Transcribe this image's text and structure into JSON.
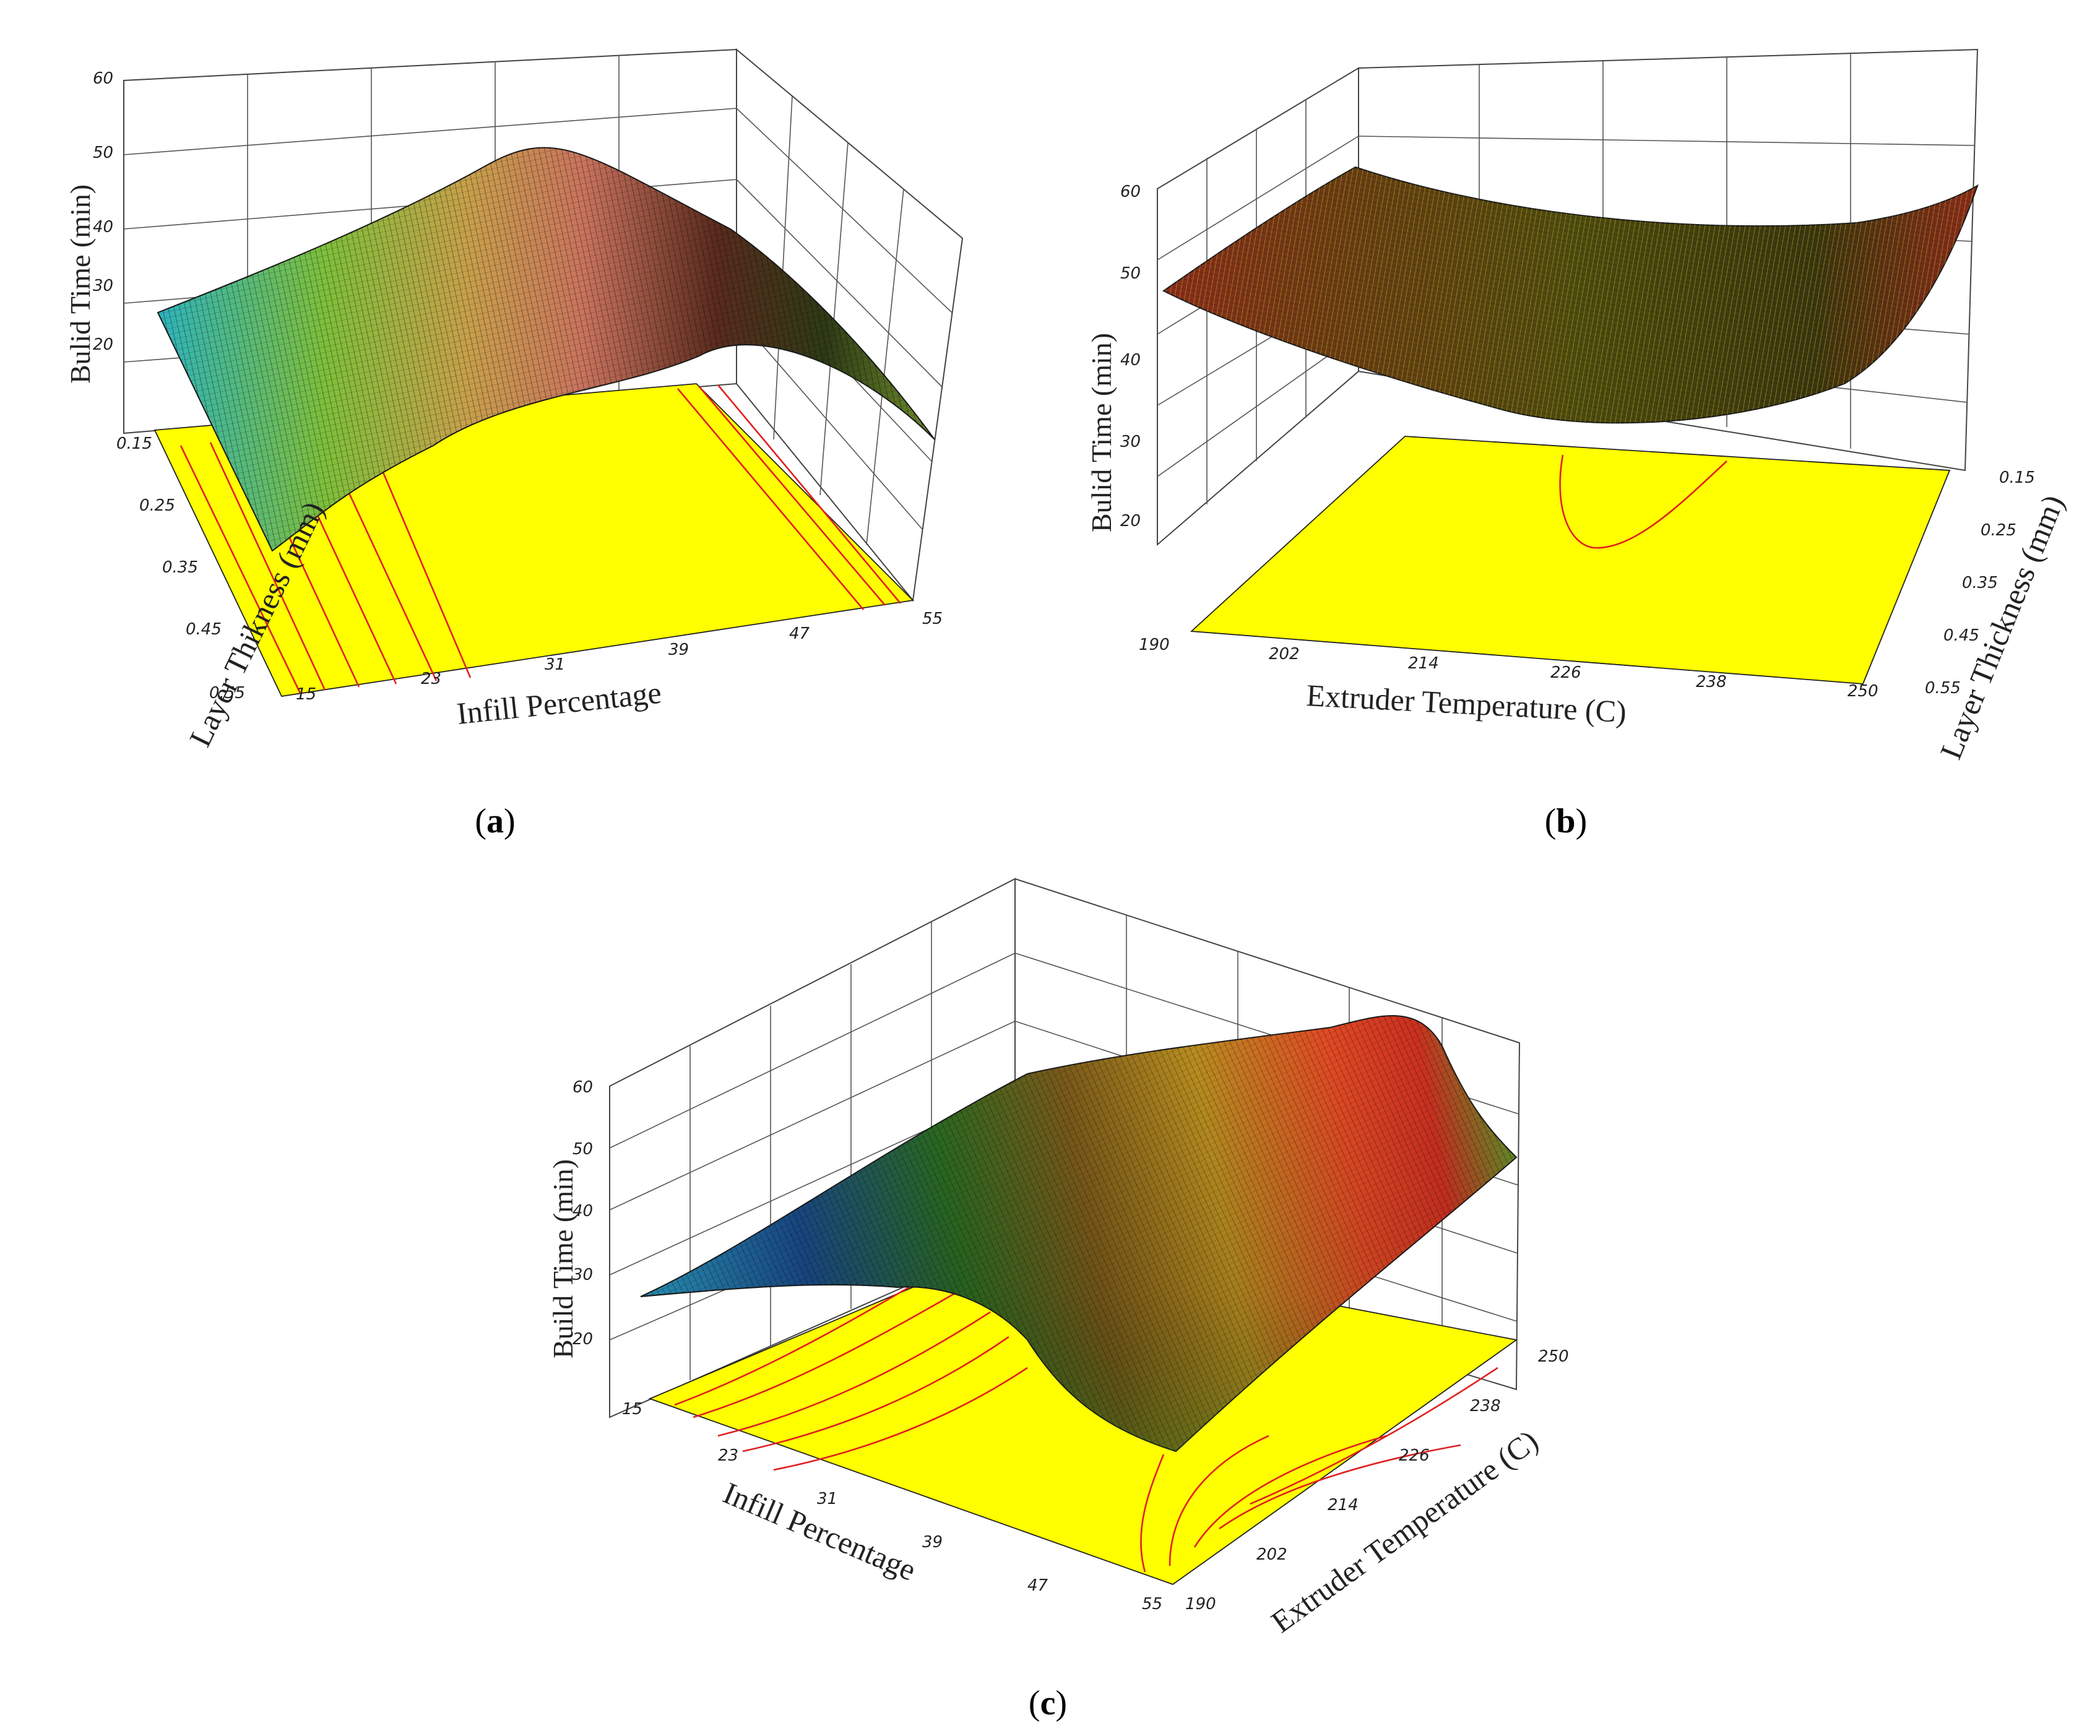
{
  "chart_data": [
    {
      "id": "a",
      "type": "surface",
      "caption_label": "a",
      "zlabel": "Bulid Time (min)",
      "xlabel": "Infill Percentage",
      "ylabel": "Layer Thikness (mm)",
      "x_ticks": [
        "15",
        "23",
        "31",
        "39",
        "47",
        "55"
      ],
      "y_ticks": [
        "0.15",
        "0.25",
        "0.35",
        "0.45",
        "0.55"
      ],
      "z_ticks": [
        "20",
        "30",
        "40",
        "50",
        "60"
      ],
      "xlim": [
        15,
        55
      ],
      "ylim": [
        0.15,
        0.55
      ],
      "zlim": [
        12,
        60
      ],
      "surface_x": [
        15,
        23,
        31,
        39,
        47,
        55
      ],
      "surface_y": [
        0.15,
        0.35,
        0.55
      ],
      "surface_z": [
        [
          25,
          30,
          24
        ],
        [
          29,
          35,
          29
        ],
        [
          35,
          41,
          34
        ],
        [
          29,
          34,
          28
        ],
        [
          19,
          24,
          18
        ],
        [
          9,
          13,
          8
        ]
      ]
    },
    {
      "id": "b",
      "type": "surface",
      "caption_label": "b",
      "zlabel": "Bulid Time (min)",
      "xlabel": "Extruder Temperature (C)",
      "ylabel": "Layer Thickness (mm)",
      "x_ticks": [
        "190",
        "202",
        "214",
        "226",
        "238",
        "250"
      ],
      "y_ticks": [
        "0.15",
        "0.25",
        "0.35",
        "0.45",
        "0.55"
      ],
      "z_ticks": [
        "20",
        "30",
        "40",
        "50",
        "60"
      ],
      "xlim": [
        190,
        250
      ],
      "ylim": [
        0.15,
        0.55
      ],
      "zlim": [
        12,
        60
      ],
      "surface_x": [
        190,
        202,
        214,
        226,
        238,
        250
      ],
      "surface_y": [
        0.15,
        0.35,
        0.55
      ],
      "surface_z": [
        [
          56,
          52,
          49
        ],
        [
          48,
          45,
          41
        ],
        [
          43,
          40,
          37
        ],
        [
          42,
          39,
          36
        ],
        [
          46,
          44,
          42
        ],
        [
          57,
          54,
          52
        ]
      ]
    },
    {
      "id": "c",
      "type": "surface",
      "caption_label": "c",
      "zlabel": "Build Time (min)",
      "xlabel": "Infill Percentage",
      "ylabel": "Extruder Temperature (C)",
      "x_ticks": [
        "15",
        "23",
        "31",
        "39",
        "47",
        "55"
      ],
      "y_ticks": [
        "190",
        "202",
        "214",
        "226",
        "238",
        "250"
      ],
      "z_ticks": [
        "20",
        "30",
        "40",
        "50",
        "60"
      ],
      "xlim": [
        15,
        55
      ],
      "ylim": [
        190,
        250
      ],
      "zlim": [
        12,
        60
      ],
      "surface_x": [
        15,
        23,
        31,
        39,
        47,
        55
      ],
      "surface_y": [
        190,
        214,
        238,
        250
      ],
      "surface_z": [
        [
          24,
          30,
          36,
          39
        ],
        [
          28,
          35,
          45,
          50
        ],
        [
          23,
          40,
          50,
          56
        ],
        [
          21,
          42,
          52,
          58
        ],
        [
          23,
          38,
          42,
          46
        ],
        [
          21,
          31,
          36,
          40
        ]
      ]
    }
  ]
}
